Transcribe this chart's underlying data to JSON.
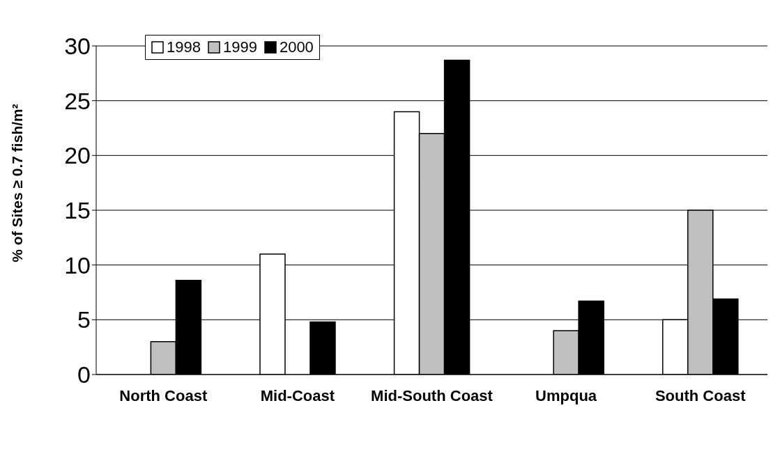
{
  "chart_data": {
    "type": "bar",
    "ylabel": "% of Sites ≥ 0.7 fish/m²",
    "categories": [
      "North Coast",
      "Mid-Coast",
      "Mid-South Coast",
      "Umpqua",
      "South Coast"
    ],
    "series": [
      {
        "name": "1998",
        "color": "#ffffff",
        "values": [
          null,
          11,
          24,
          null,
          5
        ]
      },
      {
        "name": "1999",
        "color": "#c0c0c0",
        "values": [
          3,
          null,
          22,
          4,
          15
        ]
      },
      {
        "name": "2000",
        "color": "#000000",
        "values": [
          8.6,
          4.8,
          28.7,
          6.7,
          6.9
        ]
      }
    ],
    "ylim": [
      0,
      30
    ],
    "yticks": [
      0,
      5,
      10,
      15,
      20,
      25,
      30
    ],
    "grid": "y",
    "legend": "top left"
  }
}
